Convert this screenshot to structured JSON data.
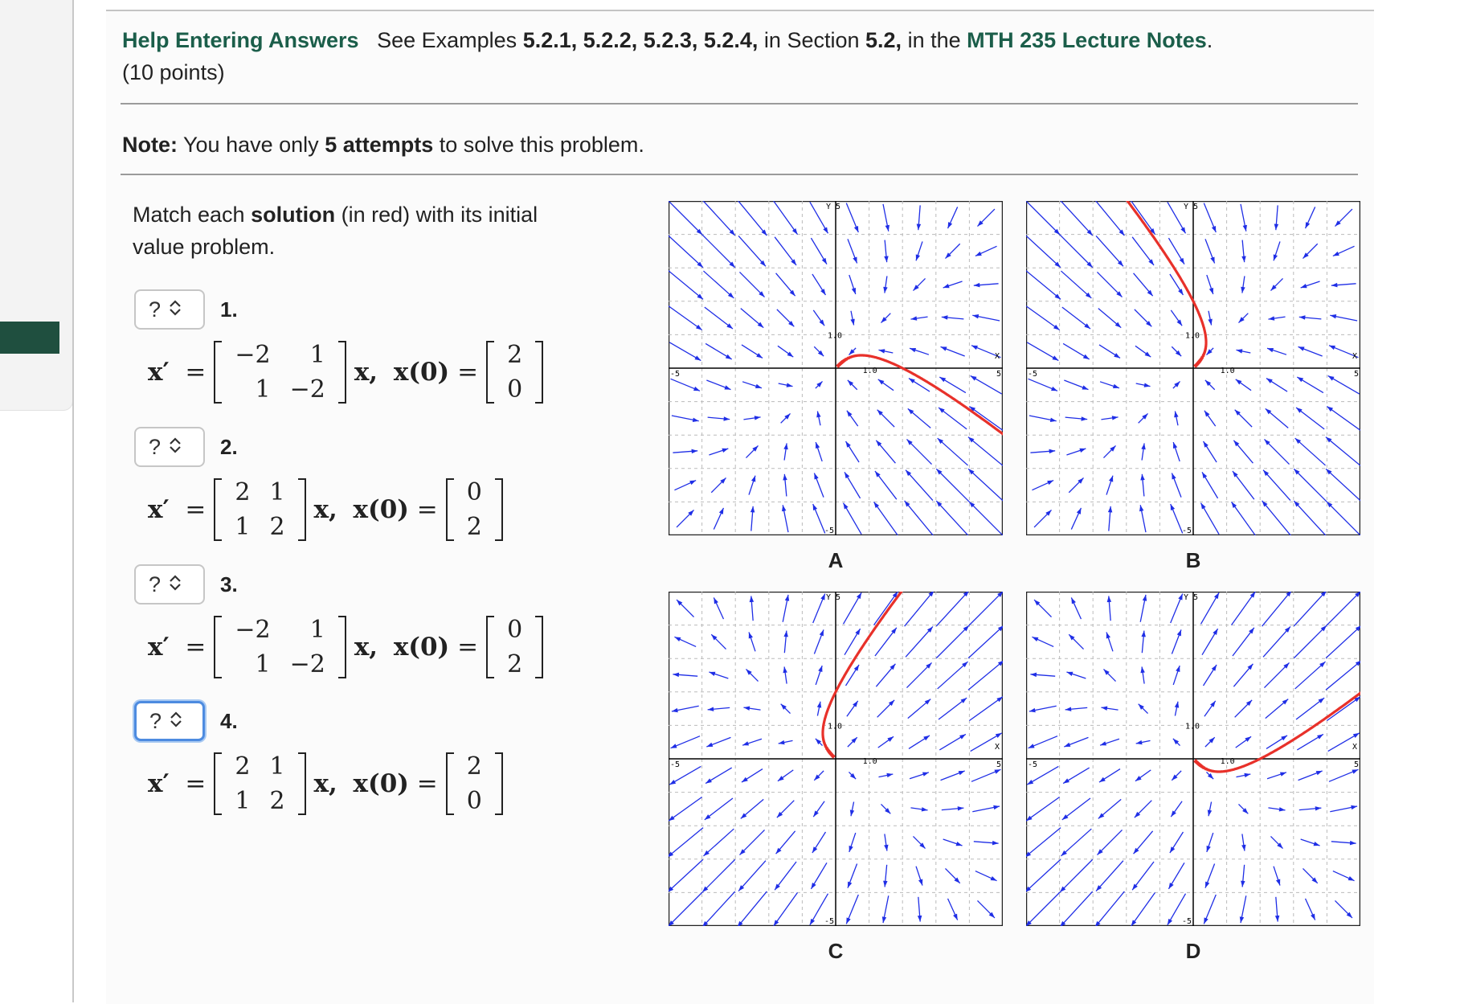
{
  "header": {
    "help_link": "Help Entering Answers",
    "see_text": "See Examples",
    "examples": "5.2.1, 5.2.2, 5.2.3, 5.2.4,",
    "in_section": "in Section",
    "section": "5.2,",
    "in_the": "in the",
    "notes_link": "MTH 235 Lecture Notes",
    "period": ".",
    "points": "(10 points)"
  },
  "note": {
    "label": "Note:",
    "pre": "You have only",
    "attempts": "5 attempts",
    "post": "to solve this problem."
  },
  "instructions": {
    "pre": "Match each",
    "bold": "solution",
    "post": "(in red) with its initial value problem."
  },
  "questions": [
    {
      "number": "1.",
      "select": "?",
      "matrix": [
        [
          "−2",
          "1"
        ],
        [
          "1",
          "−2"
        ]
      ],
      "x0": [
        "2",
        "0"
      ]
    },
    {
      "number": "2.",
      "select": "?",
      "matrix": [
        [
          "2",
          "1"
        ],
        [
          "1",
          "2"
        ]
      ],
      "x0": [
        "0",
        "2"
      ]
    },
    {
      "number": "3.",
      "select": "?",
      "matrix": [
        [
          "−2",
          "1"
        ],
        [
          "1",
          "−2"
        ]
      ],
      "x0": [
        "0",
        "2"
      ]
    },
    {
      "number": "4.",
      "select": "?",
      "matrix": [
        [
          "2",
          "1"
        ],
        [
          "1",
          "2"
        ]
      ],
      "x0": [
        "2",
        "0"
      ]
    }
  ],
  "eq_text": {
    "xprime": "x′",
    "equals": "=",
    "x": "x,",
    "x0": "x(0)"
  },
  "plots": [
    {
      "label": "A",
      "system": "stable",
      "x0": [
        2,
        0
      ]
    },
    {
      "label": "B",
      "system": "stable",
      "x0": [
        0,
        2
      ]
    },
    {
      "label": "C",
      "system": "unstable",
      "x0": [
        0,
        2
      ]
    },
    {
      "label": "D",
      "system": "unstable",
      "x0": [
        2,
        0
      ]
    }
  ],
  "plot_axes": {
    "range": [
      -5,
      5
    ],
    "y_label": "Y",
    "x_label": "X",
    "max": "5",
    "min": "-5",
    "unit": "1.0"
  },
  "colors": {
    "field": "#1f2ee6",
    "solution": "#e8312a",
    "accent_green": "#1b5e4a",
    "focus": "#4d8be0"
  }
}
